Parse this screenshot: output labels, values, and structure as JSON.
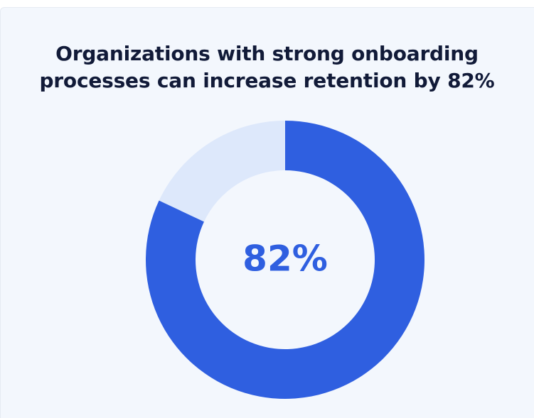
{
  "card": {
    "title_line1": "Organizations with strong onboarding",
    "title_line2": "processes can increase retention by 82%"
  },
  "chart_data": {
    "type": "pie",
    "style": "donut",
    "slices": [
      {
        "label": "",
        "value": 82,
        "color": "#2f5fe0"
      },
      {
        "label": "",
        "value": 18,
        "color": "#dde8fb"
      }
    ],
    "center_label": "82%",
    "center_label_color": "#2f5fe0",
    "start_angle_deg": 0,
    "direction": "clockwise"
  },
  "colors": {
    "background": "#f3f7fd",
    "title": "#111a38",
    "primary": "#2f5fe0",
    "remainder": "#dde8fb"
  }
}
